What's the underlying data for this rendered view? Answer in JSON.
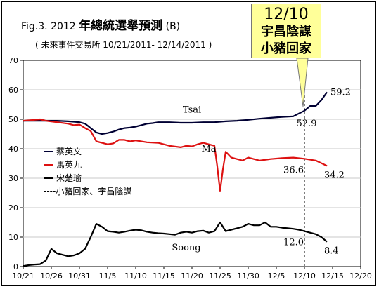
{
  "title": {
    "prefix": "Fig.3. 2012 ",
    "main": "年總統選舉預測",
    "suffix": " (B)"
  },
  "subtitle": "( 未來事件交易所  10/21/2011- 12/14/2011 )",
  "callout": {
    "line1": "12/10",
    "line2": "宇昌陰謀",
    "line3": "小豬回家"
  },
  "legend": [
    {
      "label": "蔡英文",
      "color": "#000033",
      "style": "solid"
    },
    {
      "label": "馬英九",
      "color": "#dd1111",
      "style": "solid"
    },
    {
      "label": "宋楚瑜",
      "color": "#000000",
      "style": "solid"
    },
    {
      "label": "----小豬回家、宇昌陰謀",
      "color": "#000000",
      "style": "text"
    }
  ],
  "chart_data": {
    "type": "line",
    "x_tick_labels": [
      "10/21",
      "10/26",
      "10/31",
      "11/5",
      "11/10",
      "11/15",
      "11/20",
      "11/25",
      "11/30",
      "12/5",
      "12/10",
      "12/15",
      "12/20"
    ],
    "x_tick_days": [
      0,
      5,
      10,
      15,
      20,
      25,
      30,
      35,
      40,
      45,
      50,
      55,
      60
    ],
    "ylim": [
      0,
      70
    ],
    "y_ticks": [
      0,
      10,
      20,
      30,
      40,
      50,
      60,
      70
    ],
    "grid": true,
    "series": [
      {
        "name": "蔡英文",
        "line_label": "Tsai",
        "color": "#000033",
        "x": [
          0,
          2,
          4,
          6,
          8,
          10,
          11,
          12,
          13,
          14,
          15,
          16,
          17,
          18,
          19,
          20,
          21,
          22,
          23,
          24,
          25,
          26,
          28,
          30,
          32,
          34,
          36,
          38,
          40,
          42,
          44,
          46,
          48,
          50,
          51,
          52,
          53,
          54
        ],
        "y": [
          49.5,
          49.5,
          49.5,
          49.5,
          49.3,
          49.0,
          48.5,
          47.0,
          45.5,
          45.0,
          45.3,
          45.8,
          46.5,
          47.0,
          47.2,
          47.5,
          48.0,
          48.5,
          48.7,
          49.0,
          49.0,
          49.0,
          48.8,
          48.8,
          49.0,
          49.0,
          49.3,
          49.5,
          49.8,
          50.2,
          50.5,
          50.8,
          51.0,
          52.9,
          54.5,
          54.5,
          56.5,
          59.2
        ]
      },
      {
        "name": "馬英九",
        "line_label": "Ma",
        "color": "#dd1111",
        "x": [
          0,
          2,
          3,
          4,
          6,
          8,
          9,
          10,
          11,
          12,
          13,
          14,
          15,
          16,
          17,
          18,
          19,
          20,
          22,
          24,
          25,
          26,
          28,
          29,
          30,
          31,
          32,
          33,
          34,
          34.5,
          35,
          35.5,
          36,
          37,
          38,
          39,
          40,
          41,
          42,
          44,
          46,
          48,
          50,
          52,
          54
        ],
        "y": [
          49.5,
          49.8,
          50.0,
          49.5,
          49.0,
          48.5,
          48.0,
          48.2,
          47.0,
          46.0,
          42.5,
          42.0,
          41.5,
          41.8,
          43.0,
          43.0,
          42.5,
          42.8,
          42.2,
          42.0,
          41.5,
          41.0,
          40.5,
          41.0,
          40.8,
          41.5,
          42.0,
          41.5,
          41.0,
          34.0,
          25.5,
          33.0,
          39.0,
          37.0,
          36.5,
          36.0,
          37.0,
          36.5,
          36.0,
          36.5,
          36.8,
          37.0,
          36.6,
          36.0,
          34.2
        ]
      },
      {
        "name": "宋楚瑜",
        "line_label": "Soong",
        "color": "#000000",
        "x": [
          0,
          1,
          2,
          3,
          4,
          5,
          6,
          7,
          8,
          9,
          10,
          11,
          12,
          13,
          14,
          15,
          16,
          17,
          18,
          19,
          20,
          21,
          22,
          23,
          24,
          25,
          26,
          27,
          28,
          29,
          30,
          31,
          32,
          33,
          34,
          35,
          36,
          37,
          38,
          39,
          40,
          41,
          42,
          43,
          44,
          45,
          46,
          47,
          48,
          49,
          50,
          51,
          52,
          53,
          54
        ],
        "y": [
          0.2,
          0.5,
          0.7,
          0.8,
          2.0,
          6.0,
          4.5,
          4.0,
          3.5,
          3.8,
          4.5,
          6.0,
          10.0,
          14.5,
          13.5,
          12.0,
          11.8,
          11.5,
          11.8,
          12.2,
          12.5,
          12.3,
          11.8,
          11.5,
          11.3,
          11.2,
          11.0,
          10.8,
          11.5,
          11.8,
          11.5,
          12.0,
          12.2,
          11.5,
          12.0,
          15.0,
          12.0,
          12.5,
          13.0,
          13.5,
          14.5,
          14.0,
          14.0,
          15.0,
          13.5,
          13.5,
          13.2,
          13.0,
          12.8,
          12.5,
          12.0,
          11.5,
          11.0,
          10.0,
          8.4
        ]
      }
    ],
    "data_labels": [
      {
        "text": "59.2",
        "series": 0,
        "x": 54,
        "y": 59.2,
        "pos": "right"
      },
      {
        "text": "52.9",
        "series": 0,
        "x": 50,
        "y": 52.9,
        "pos": "below"
      },
      {
        "text": "36.6",
        "series": 1,
        "x": 50,
        "y": 36.6,
        "pos": "below-left"
      },
      {
        "text": "34.2",
        "series": 1,
        "x": 54,
        "y": 34.2,
        "pos": "below-right"
      },
      {
        "text": "12.0",
        "series": 2,
        "x": 50,
        "y": 12.0,
        "pos": "below-left"
      },
      {
        "text": "8.4",
        "series": 2,
        "x": 54,
        "y": 8.4,
        "pos": "below-right"
      }
    ],
    "line_labels": [
      {
        "text": "Tsai",
        "series": 0,
        "x": 30,
        "y": 52.3
      },
      {
        "text": "Ma",
        "series": 1,
        "x": 33,
        "y": 39.0
      },
      {
        "text": "Soong",
        "series": 2,
        "x": 29,
        "y": 5.5
      }
    ],
    "event_marker_x": 50
  }
}
